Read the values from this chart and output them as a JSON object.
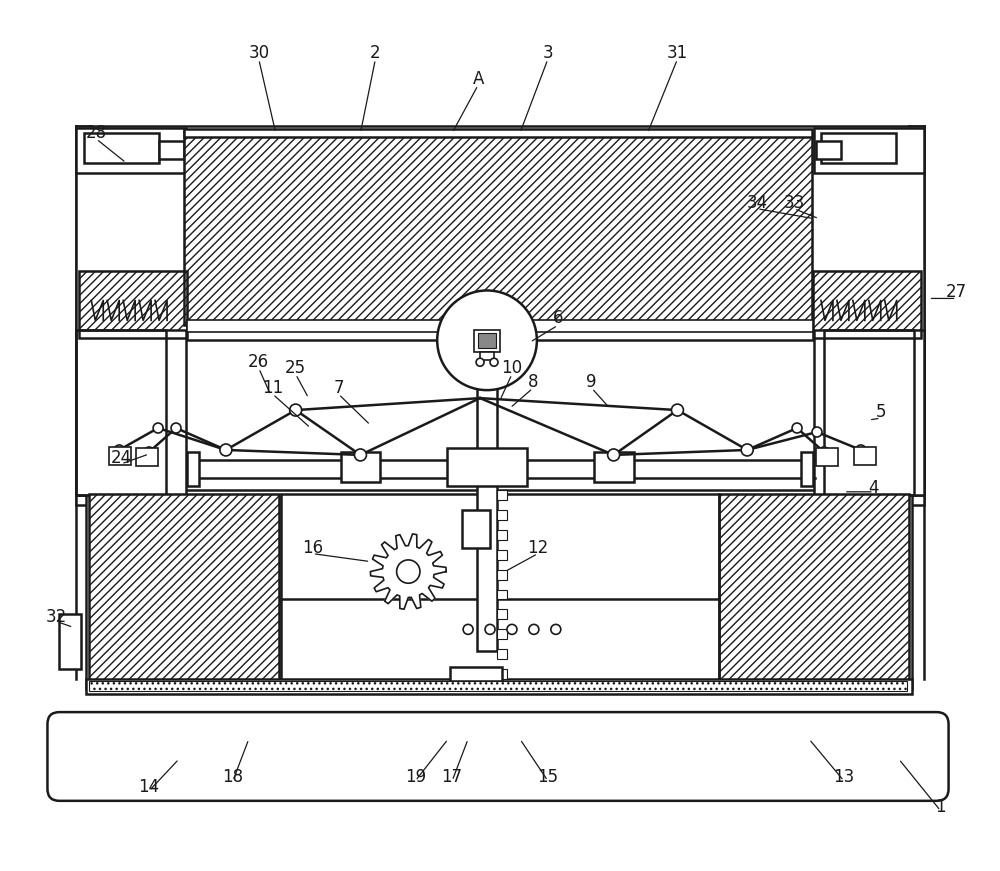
{
  "bg_color": "#ffffff",
  "line_color": "#1a1a1a",
  "figsize": [
    10.0,
    8.71
  ],
  "dpi": 100,
  "label_data": [
    [
      "1",
      942,
      808
    ],
    [
      "2",
      375,
      52
    ],
    [
      "3",
      548,
      52
    ],
    [
      "4",
      875,
      488
    ],
    [
      "5",
      882,
      412
    ],
    [
      "6",
      558,
      318
    ],
    [
      "7",
      338,
      388
    ],
    [
      "8",
      533,
      382
    ],
    [
      "9",
      592,
      382
    ],
    [
      "10",
      512,
      368
    ],
    [
      "11",
      272,
      388
    ],
    [
      "12",
      538,
      548
    ],
    [
      "13",
      845,
      778
    ],
    [
      "14",
      148,
      788
    ],
    [
      "15",
      548,
      778
    ],
    [
      "16",
      312,
      548
    ],
    [
      "17",
      452,
      778
    ],
    [
      "18",
      232,
      778
    ],
    [
      "19",
      415,
      778
    ],
    [
      "24",
      120,
      458
    ],
    [
      "25",
      295,
      368
    ],
    [
      "26",
      258,
      362
    ],
    [
      "27",
      958,
      292
    ],
    [
      "28",
      95,
      132
    ],
    [
      "30",
      258,
      52
    ],
    [
      "31",
      678,
      52
    ],
    [
      "32",
      55,
      618
    ],
    [
      "33",
      795,
      202
    ],
    [
      "34",
      758,
      202
    ],
    [
      "A",
      478,
      78
    ]
  ]
}
